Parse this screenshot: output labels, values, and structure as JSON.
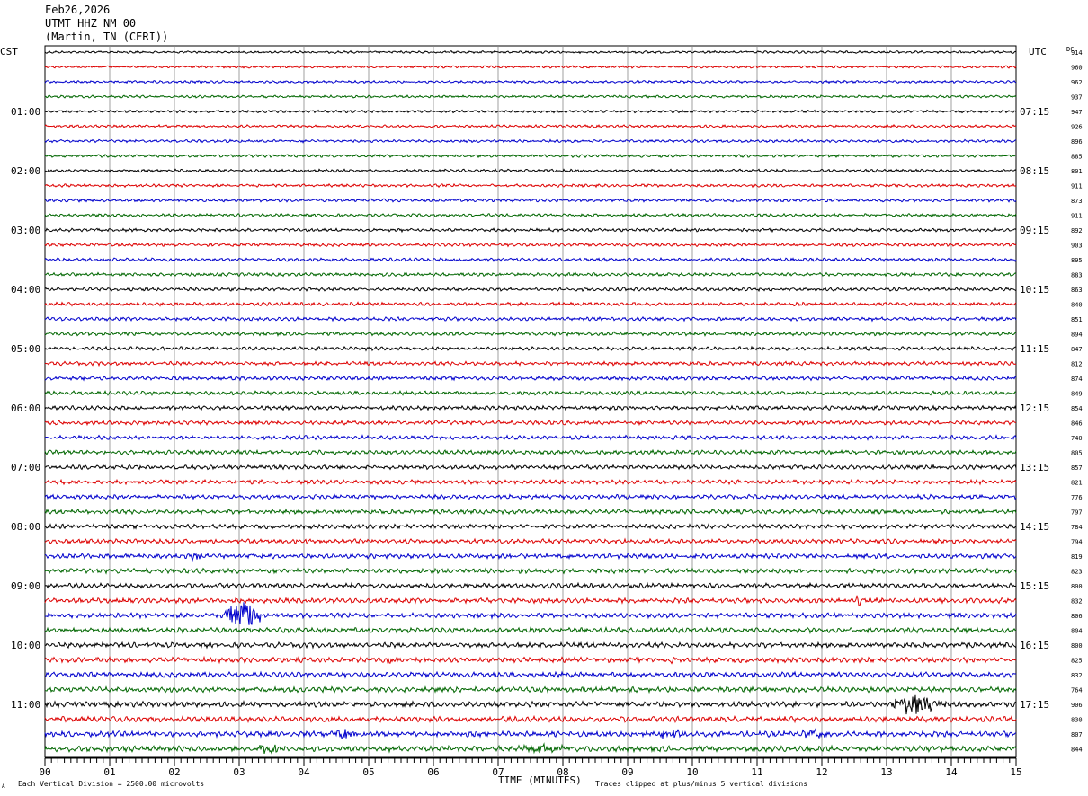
{
  "header": {
    "date": "Feb26,2026",
    "station": "UTMT HHZ NM 00",
    "location": "(Martin, TN (CERI))"
  },
  "chart_data": {
    "type": "line",
    "title": "Feb26,2026",
    "left_axis_label": "CST",
    "right_axis_label": "UTC",
    "dc_label": "DC",
    "xlabel": "TIME (MINUTES)",
    "xlim": [
      0,
      15
    ],
    "x_ticks": [
      "00",
      "01",
      "02",
      "03",
      "04",
      "05",
      "06",
      "07",
      "08",
      "09",
      "10",
      "11",
      "12",
      "13",
      "14",
      "15"
    ],
    "left_hour_labels": [
      "01:00",
      "02:00",
      "03:00",
      "04:00",
      "05:00",
      "06:00",
      "07:00",
      "08:00",
      "09:00",
      "10:00",
      "11:00"
    ],
    "right_hour_labels": [
      "07:15",
      "08:15",
      "09:15",
      "10:15",
      "11:15",
      "12:15",
      "13:15",
      "14:15",
      "15:15",
      "16:15",
      "17:15"
    ],
    "first_hour_label_row": 4,
    "rows_per_hour": 4,
    "trace_colors": [
      "#000000",
      "#dd0000",
      "#0000cc",
      "#006600"
    ],
    "dc_offsets": [
      "914",
      "960",
      "962",
      "937",
      "947",
      "926",
      "896",
      "885",
      "801",
      "911",
      "873",
      "911",
      "892",
      "903",
      "895",
      "883",
      "863",
      "840",
      "851",
      "894",
      "847",
      "812",
      "874",
      "849",
      "854",
      "846",
      "740",
      "805",
      "857",
      "821",
      "776",
      "797",
      "784",
      "794",
      "819",
      "823",
      "800",
      "832",
      "806",
      "804",
      "800",
      "825",
      "832",
      "764",
      "906",
      "830",
      "807",
      "844"
    ],
    "events": [
      {
        "row": 34,
        "minute": 2.3,
        "amp": 5,
        "dur": 0.12
      },
      {
        "row": 34,
        "minute": 3.2,
        "amp": 4,
        "dur": 0.12
      },
      {
        "row": 37,
        "minute": 12.55,
        "amp": 11,
        "dur": 0.04
      },
      {
        "row": 38,
        "minute": 2.95,
        "amp": 17,
        "dur": 0.35
      },
      {
        "row": 41,
        "minute": 5.3,
        "amp": 3,
        "dur": 0.15
      },
      {
        "row": 41,
        "minute": 9.7,
        "amp": 3,
        "dur": 0.15
      },
      {
        "row": 44,
        "minute": 13.3,
        "amp": 11,
        "dur": 0.45
      },
      {
        "row": 46,
        "minute": 4.5,
        "amp": 4,
        "dur": 0.4
      },
      {
        "row": 46,
        "minute": 9.6,
        "amp": 4,
        "dur": 0.25
      },
      {
        "row": 46,
        "minute": 11.8,
        "amp": 4,
        "dur": 0.25
      },
      {
        "row": 47,
        "minute": 3.4,
        "amp": 4,
        "dur": 0.3
      },
      {
        "row": 47,
        "minute": 7.5,
        "amp": 4,
        "dur": 0.6
      }
    ]
  },
  "footer": {
    "scale_note": "Each Vertical Division = 2500.00 microvolts",
    "clip_note": "Traces clipped at plus/minus 5 vertical divisions",
    "corner_mark": "A"
  }
}
